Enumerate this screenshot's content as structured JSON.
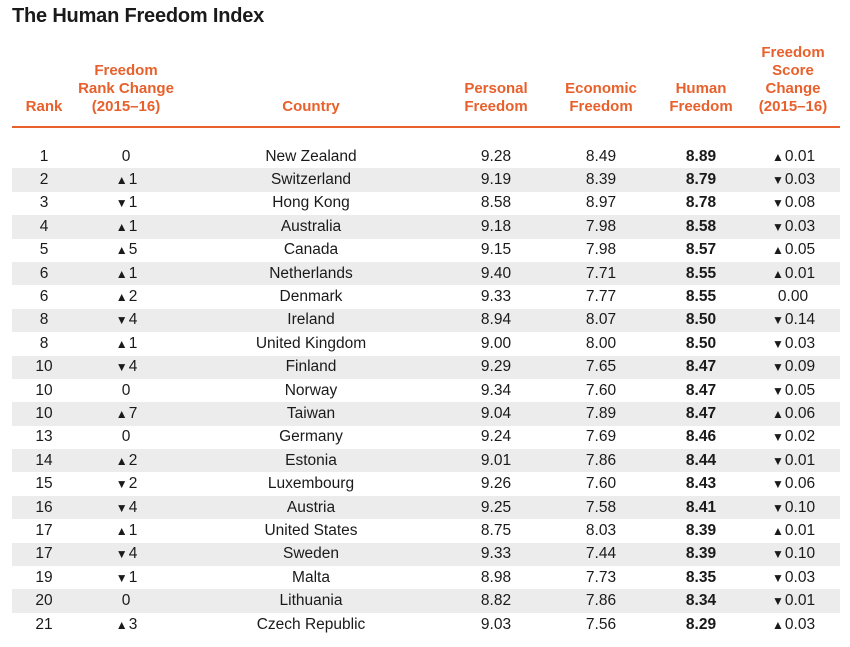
{
  "chart_data": {
    "type": "table",
    "title": "The Human Freedom Index",
    "columns": [
      "Rank",
      "Freedom Rank Change (2015–16)",
      "Country",
      "Personal Freedom",
      "Economic Freedom",
      "Human Freedom",
      "Freedom Score Change (2015–16)"
    ],
    "header_lines": [
      [
        "Rank"
      ],
      [
        "Freedom",
        "Rank Change",
        "(2015–16)"
      ],
      [
        "Country"
      ],
      [
        "Personal",
        "Freedom"
      ],
      [
        "Economic",
        "Freedom"
      ],
      [
        "Human",
        "Freedom"
      ],
      [
        "Freedom",
        "Score Change",
        "(2015–16)"
      ]
    ],
    "rows": [
      {
        "rank": "1",
        "rank_change": "0",
        "country": "New Zealand",
        "personal": "9.28",
        "economic": "8.49",
        "human": "8.89",
        "score_change": "▲0.01"
      },
      {
        "rank": "2",
        "rank_change": "▲1",
        "country": "Switzerland",
        "personal": "9.19",
        "economic": "8.39",
        "human": "8.79",
        "score_change": "▼0.03"
      },
      {
        "rank": "3",
        "rank_change": "▼1",
        "country": "Hong Kong",
        "personal": "8.58",
        "economic": "8.97",
        "human": "8.78",
        "score_change": "▼0.08"
      },
      {
        "rank": "4",
        "rank_change": "▲1",
        "country": "Australia",
        "personal": "9.18",
        "economic": "7.98",
        "human": "8.58",
        "score_change": "▼0.03"
      },
      {
        "rank": "5",
        "rank_change": "▲5",
        "country": "Canada",
        "personal": "9.15",
        "economic": "7.98",
        "human": "8.57",
        "score_change": "▲0.05"
      },
      {
        "rank": "6",
        "rank_change": "▲1",
        "country": "Netherlands",
        "personal": "9.40",
        "economic": "7.71",
        "human": "8.55",
        "score_change": "▲0.01"
      },
      {
        "rank": "6",
        "rank_change": "▲2",
        "country": "Denmark",
        "personal": "9.33",
        "economic": "7.77",
        "human": "8.55",
        "score_change": "0.00"
      },
      {
        "rank": "8",
        "rank_change": "▼4",
        "country": "Ireland",
        "personal": "8.94",
        "economic": "8.07",
        "human": "8.50",
        "score_change": "▼0.14"
      },
      {
        "rank": "8",
        "rank_change": "▲1",
        "country": "United Kingdom",
        "personal": "9.00",
        "economic": "8.00",
        "human": "8.50",
        "score_change": "▼0.03"
      },
      {
        "rank": "10",
        "rank_change": "▼4",
        "country": "Finland",
        "personal": "9.29",
        "economic": "7.65",
        "human": "8.47",
        "score_change": "▼0.09"
      },
      {
        "rank": "10",
        "rank_change": "0",
        "country": "Norway",
        "personal": "9.34",
        "economic": "7.60",
        "human": "8.47",
        "score_change": "▼0.05"
      },
      {
        "rank": "10",
        "rank_change": "▲7",
        "country": "Taiwan",
        "personal": "9.04",
        "economic": "7.89",
        "human": "8.47",
        "score_change": "▲0.06"
      },
      {
        "rank": "13",
        "rank_change": "0",
        "country": "Germany",
        "personal": "9.24",
        "economic": "7.69",
        "human": "8.46",
        "score_change": "▼0.02"
      },
      {
        "rank": "14",
        "rank_change": "▲2",
        "country": "Estonia",
        "personal": "9.01",
        "economic": "7.86",
        "human": "8.44",
        "score_change": "▼0.01"
      },
      {
        "rank": "15",
        "rank_change": "▼2",
        "country": "Luxembourg",
        "personal": "9.26",
        "economic": "7.60",
        "human": "8.43",
        "score_change": "▼0.06"
      },
      {
        "rank": "16",
        "rank_change": "▼4",
        "country": "Austria",
        "personal": "9.25",
        "economic": "7.58",
        "human": "8.41",
        "score_change": "▼0.10"
      },
      {
        "rank": "17",
        "rank_change": "▲1",
        "country": "United States",
        "personal": "8.75",
        "economic": "8.03",
        "human": "8.39",
        "score_change": "▲0.01"
      },
      {
        "rank": "17",
        "rank_change": "▼4",
        "country": "Sweden",
        "personal": "9.33",
        "economic": "7.44",
        "human": "8.39",
        "score_change": "▼0.10"
      },
      {
        "rank": "19",
        "rank_change": "▼1",
        "country": "Malta",
        "personal": "8.98",
        "economic": "7.73",
        "human": "8.35",
        "score_change": "▼0.03"
      },
      {
        "rank": "20",
        "rank_change": "0",
        "country": "Lithuania",
        "personal": "8.82",
        "economic": "7.86",
        "human": "8.34",
        "score_change": "▼0.01"
      },
      {
        "rank": "21",
        "rank_change": "▲3",
        "country": "Czech Republic",
        "personal": "9.03",
        "economic": "7.56",
        "human": "8.29",
        "score_change": "▲0.03"
      }
    ]
  },
  "colors": {
    "accent": "#e8602c",
    "stripe": "#ececec",
    "text": "#1a1a1a"
  }
}
